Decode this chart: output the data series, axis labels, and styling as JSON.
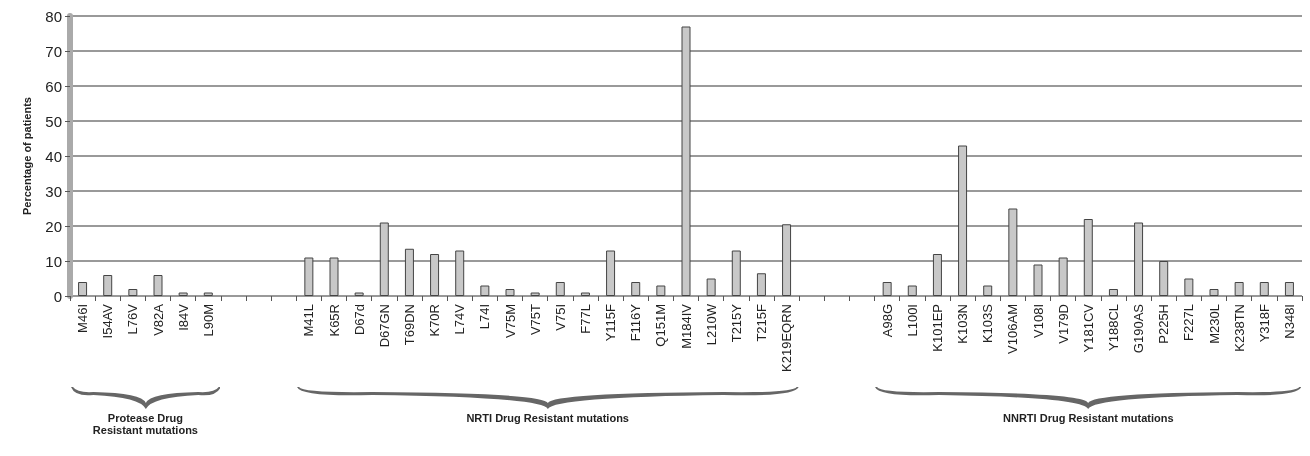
{
  "chart_data": {
    "type": "bar",
    "ylabel": "Percentage of patients",
    "categories": [
      "M46I",
      "I54AV",
      "L76V",
      "V82A",
      "I84V",
      "L90M",
      null,
      null,
      null,
      "M41L",
      "K65R",
      "D67d",
      "D67GN",
      "T69DN",
      "K70R",
      "L74V",
      "L74I",
      "V75M",
      "V75T",
      "V75I",
      "F77L",
      "Y115F",
      "F116Y",
      "Q151M",
      "M184IV",
      "L210W",
      "T215Y",
      "T215F",
      "K219EQRN",
      null,
      null,
      null,
      "A98G",
      "L100I",
      "K101EP",
      "K103N",
      "K103S",
      "V106AM",
      "V108I",
      "V179D",
      "Y181CV",
      "Y188CL",
      "G190AS",
      "P225H",
      "F227L",
      "M230L",
      "K238TN",
      "Y318F",
      "N348I"
    ],
    "values": [
      4,
      6,
      2,
      6,
      1,
      1,
      null,
      null,
      null,
      11,
      11,
      1,
      21,
      13.5,
      12,
      13,
      3,
      2,
      1,
      4,
      1,
      13,
      4,
      3,
      77,
      5,
      13,
      6.5,
      20.5,
      null,
      null,
      null,
      4,
      3,
      12,
      43,
      3,
      25,
      9,
      11,
      22,
      2,
      21,
      10,
      5,
      2,
      4,
      4,
      4
    ],
    "color": "#c8c8c8",
    "ylim": [
      0,
      80
    ],
    "yticks": [
      0,
      10,
      20,
      30,
      40,
      50,
      60,
      70,
      80
    ],
    "grid": "y",
    "annotations": [
      "Protease Drug\nResistant mutations",
      "NRTI Drug Resistant mutations",
      "NNRTI Drug Resistant mutations"
    ]
  }
}
